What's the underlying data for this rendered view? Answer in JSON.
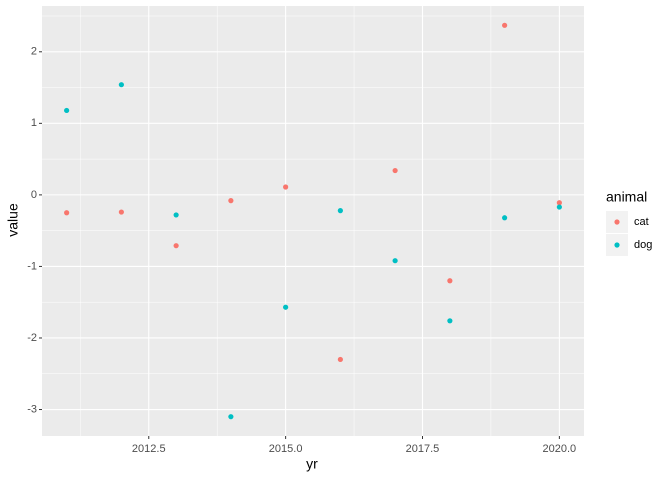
{
  "chart_data": {
    "type": "scatter",
    "x_label": "yr",
    "y_label": "value",
    "legend_title": "animal",
    "x": [
      2011,
      2012,
      2013,
      2014,
      2015,
      2016,
      2017,
      2018,
      2019,
      2020
    ],
    "series": [
      {
        "name": "cat",
        "color": "#F8766D",
        "values": [
          -0.25,
          -0.24,
          -0.71,
          -0.08,
          0.11,
          -2.3,
          0.34,
          -1.2,
          2.37,
          -0.11
        ]
      },
      {
        "name": "dog",
        "color": "#00BFC4",
        "values": [
          1.18,
          1.54,
          -0.28,
          -3.1,
          -1.57,
          -0.22,
          -0.92,
          -1.76,
          -0.32,
          -0.17
        ]
      }
    ],
    "xlim": [
      2010.55,
      2020.45
    ],
    "xticks": [
      2012.5,
      {
        "value": 2015,
        "label": "2015.0"
      },
      2017.5,
      {
        "value": 2020,
        "label": "2020.0"
      }
    ],
    "ylim": [
      -3.37,
      2.64
    ],
    "yticks": [
      -3,
      -2,
      -1,
      0,
      1,
      2
    ],
    "grid": true,
    "legend": "right"
  }
}
